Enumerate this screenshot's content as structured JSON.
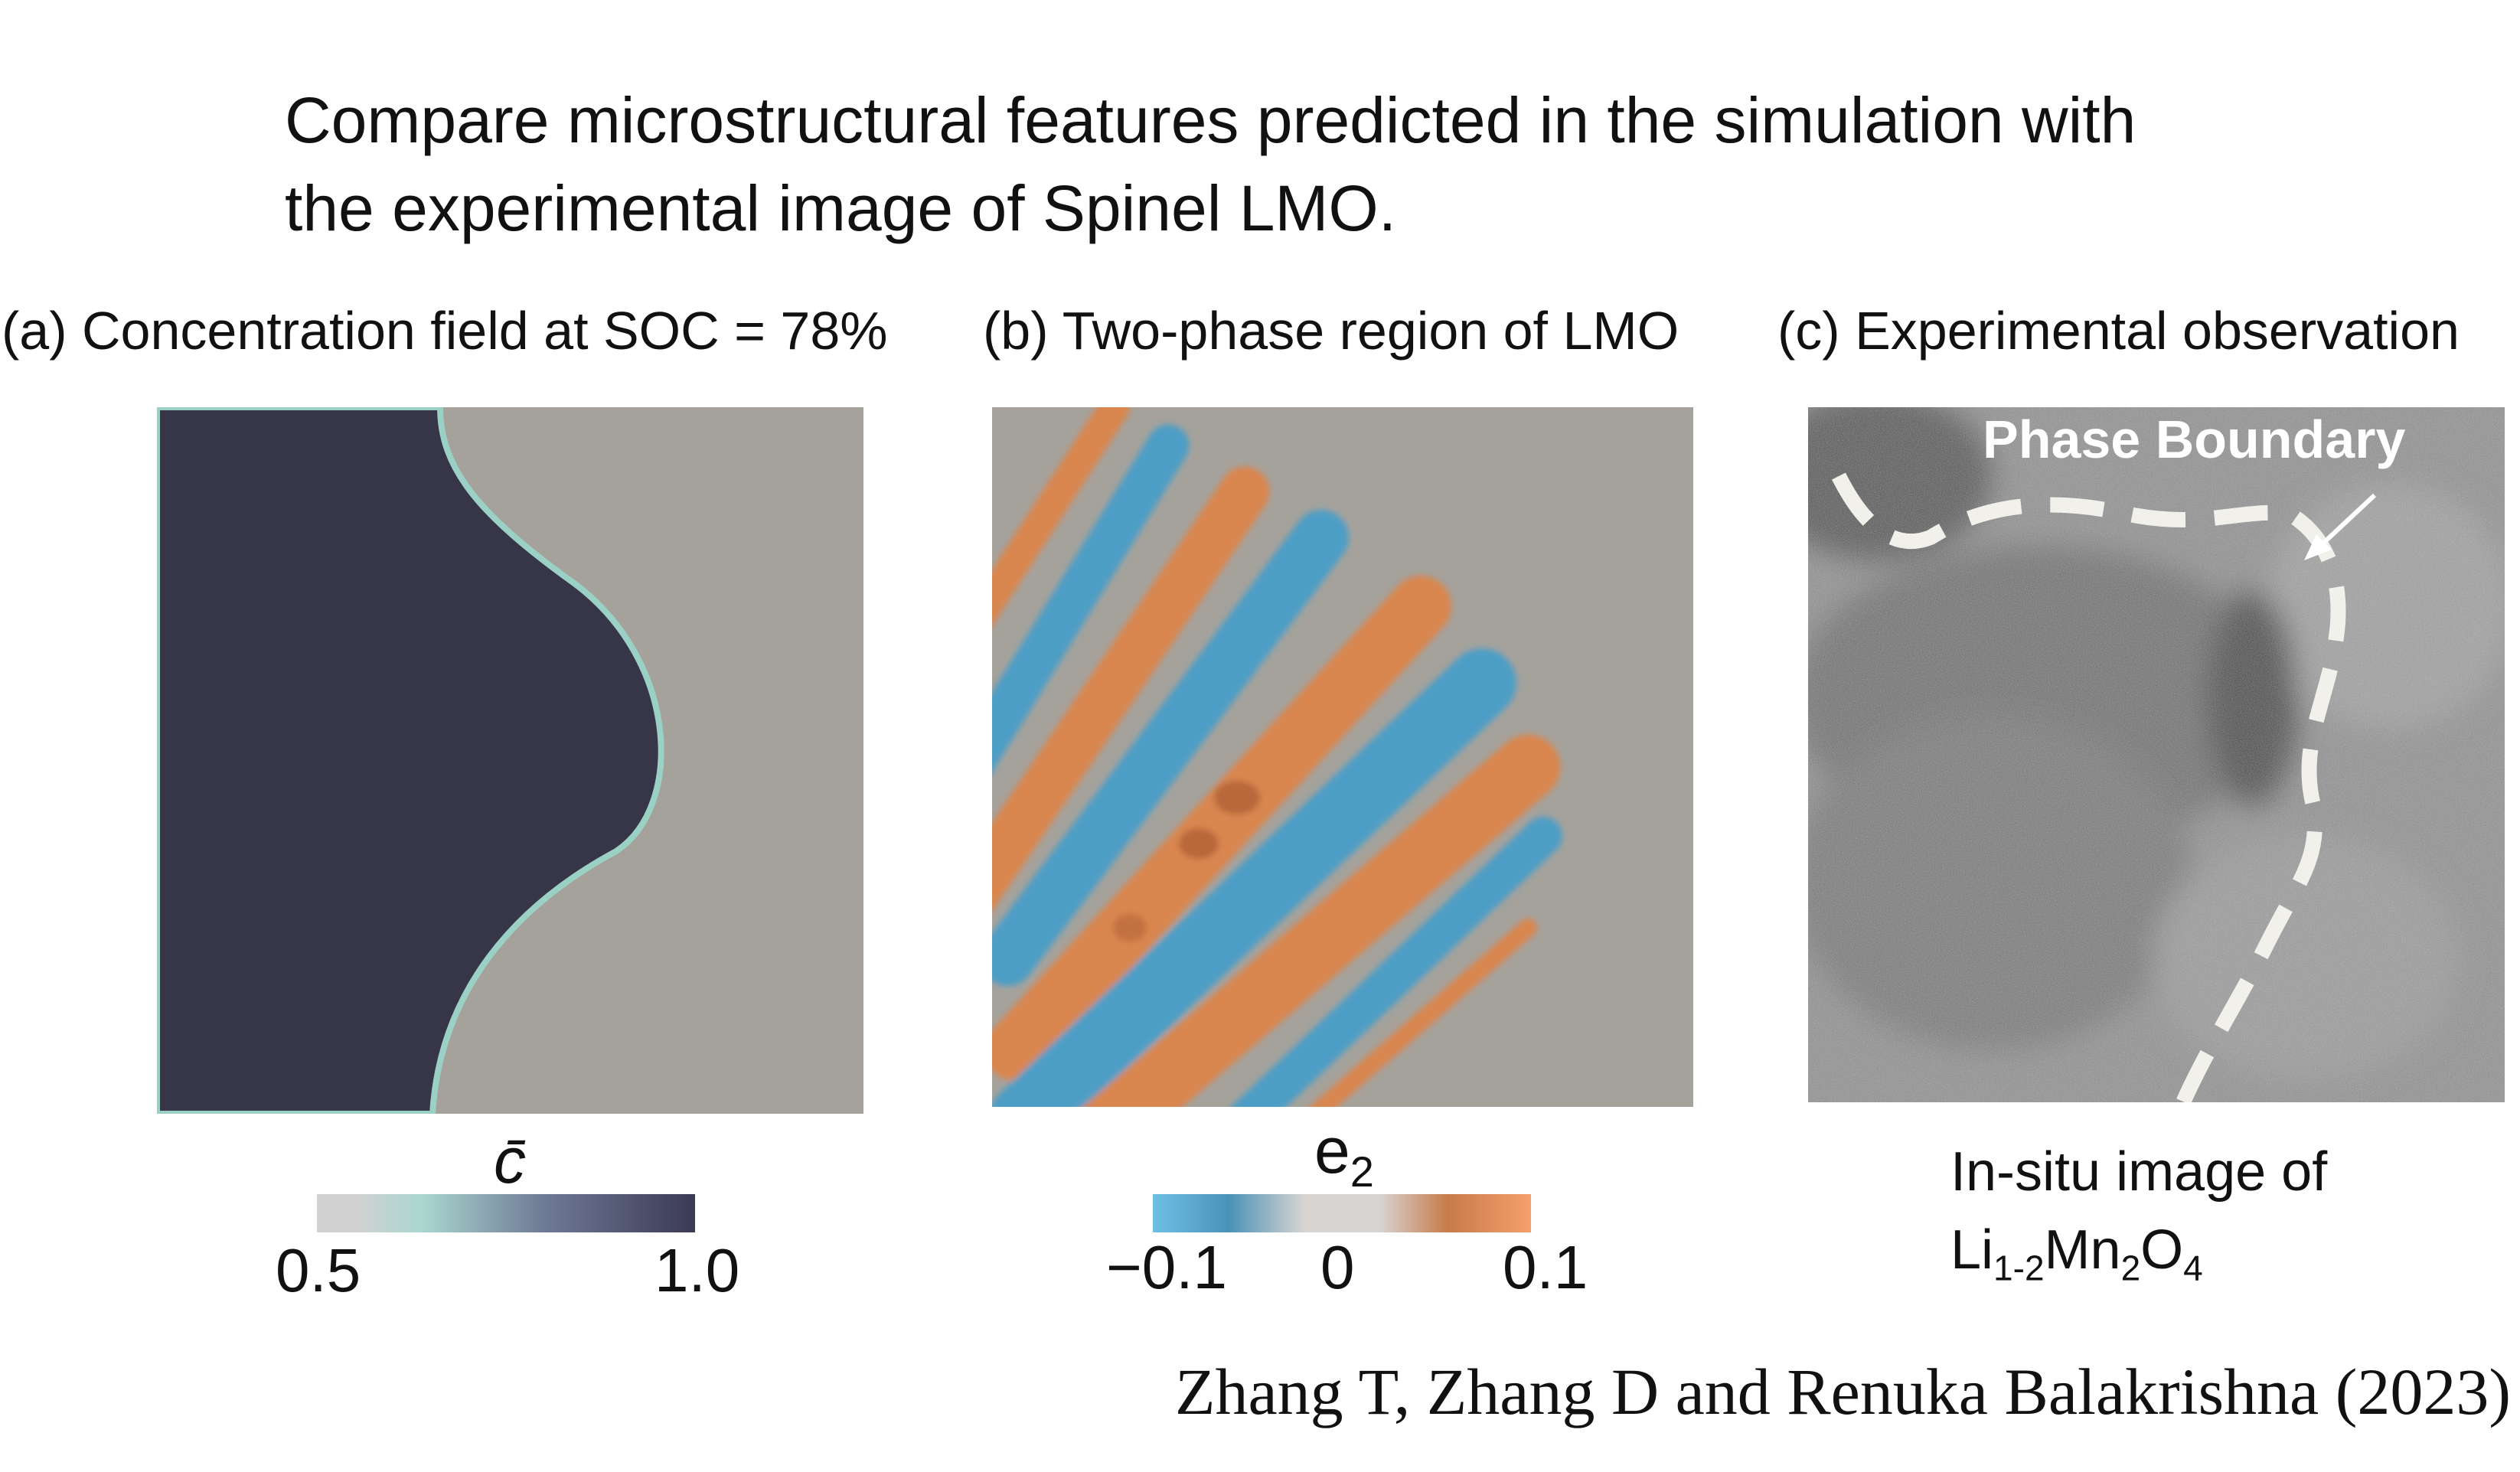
{
  "headline": {
    "line1": "Compare microstructural features predicted in the simulation with",
    "line2": "the experimental image of Spinel LMO."
  },
  "panels": {
    "a": {
      "title": "(a) Concentration field at SOC = 78%"
    },
    "b": {
      "title": "(b) Two-phase region of LMO"
    },
    "c": {
      "title": "(c) Experimental observation",
      "annotation": "Phase Boundary",
      "caption_line1": "In-situ image of",
      "formula": {
        "el1": "Li",
        "sub1": "1-2",
        "el2": "Mn",
        "sub2": "2",
        "el3": "O",
        "sub3": "4"
      }
    }
  },
  "colorbars": {
    "a": {
      "label": "c̄",
      "min_label": "0.5",
      "max_label": "1.0",
      "colors": [
        "#d2d2d2",
        "#a9d6cf",
        "#6f7a96",
        "#3b3a55"
      ]
    },
    "b": {
      "label_base": "e",
      "label_sub": "2",
      "min_label": "−0.1",
      "mid_label": "0",
      "max_label": "0.1",
      "colors": [
        "#6fbfe6",
        "#4a92b8",
        "#d8d4d2",
        "#c87a4a",
        "#f5a06a"
      ]
    }
  },
  "colors": {
    "dark_phase": "#373648",
    "light_phase": "#a5a29c",
    "interface": "#9ad1c4",
    "strain_negative": "#4d9ec6",
    "strain_positive": "#d9864f"
  },
  "citation": "Zhang T, Zhang D and Renuka Balakrishna (2023)"
}
